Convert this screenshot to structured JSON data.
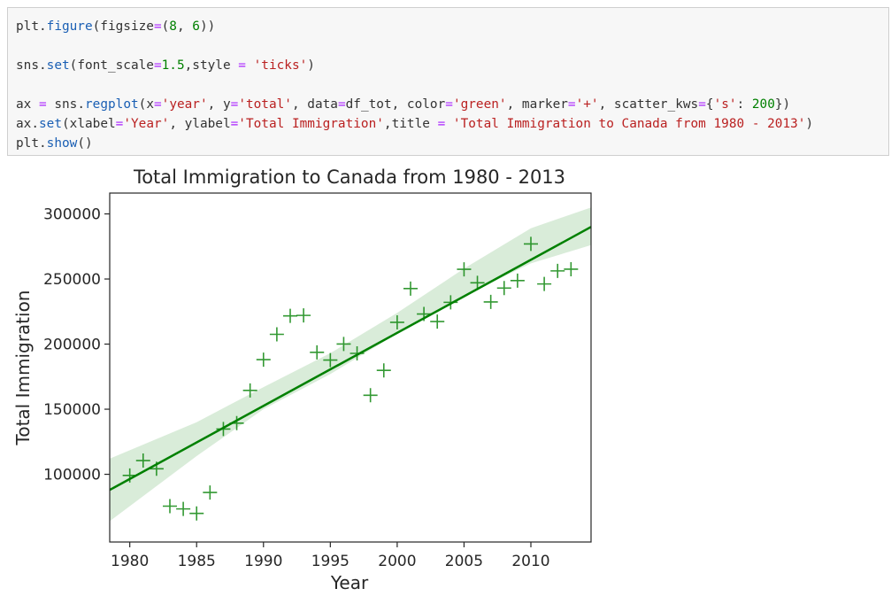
{
  "code_cell": {
    "lines": [
      [
        {
          "t": "plt.",
          "c": ""
        },
        {
          "t": "figure",
          "c": "fn"
        },
        {
          "t": "(figsize",
          "c": ""
        },
        {
          "t": "=",
          "c": "op"
        },
        {
          "t": "(",
          "c": ""
        },
        {
          "t": "8",
          "c": "num"
        },
        {
          "t": ", ",
          "c": ""
        },
        {
          "t": "6",
          "c": "num"
        },
        {
          "t": "))",
          "c": ""
        }
      ],
      [],
      [
        {
          "t": "sns.",
          "c": ""
        },
        {
          "t": "set",
          "c": "fn"
        },
        {
          "t": "(font_scale",
          "c": ""
        },
        {
          "t": "=",
          "c": "op"
        },
        {
          "t": "1.5",
          "c": "num"
        },
        {
          "t": ",style ",
          "c": ""
        },
        {
          "t": "=",
          "c": "op"
        },
        {
          "t": " ",
          "c": ""
        },
        {
          "t": "'ticks'",
          "c": "str"
        },
        {
          "t": ")",
          "c": ""
        }
      ],
      [],
      [
        {
          "t": "ax ",
          "c": ""
        },
        {
          "t": "=",
          "c": "op"
        },
        {
          "t": " sns.",
          "c": ""
        },
        {
          "t": "regplot",
          "c": "fn"
        },
        {
          "t": "(x",
          "c": ""
        },
        {
          "t": "=",
          "c": "op"
        },
        {
          "t": "'year'",
          "c": "str"
        },
        {
          "t": ", y",
          "c": ""
        },
        {
          "t": "=",
          "c": "op"
        },
        {
          "t": "'total'",
          "c": "str"
        },
        {
          "t": ", data",
          "c": ""
        },
        {
          "t": "=",
          "c": "op"
        },
        {
          "t": "df_tot, color",
          "c": ""
        },
        {
          "t": "=",
          "c": "op"
        },
        {
          "t": "'green'",
          "c": "str"
        },
        {
          "t": ", marker",
          "c": ""
        },
        {
          "t": "=",
          "c": "op"
        },
        {
          "t": "'+'",
          "c": "str"
        },
        {
          "t": ", scatter_kws",
          "c": ""
        },
        {
          "t": "=",
          "c": "op"
        },
        {
          "t": "{",
          "c": ""
        },
        {
          "t": "'s'",
          "c": "str"
        },
        {
          "t": ": ",
          "c": ""
        },
        {
          "t": "200",
          "c": "num"
        },
        {
          "t": "})",
          "c": ""
        }
      ],
      [
        {
          "t": "ax.",
          "c": ""
        },
        {
          "t": "set",
          "c": "fn"
        },
        {
          "t": "(xlabel",
          "c": ""
        },
        {
          "t": "=",
          "c": "op"
        },
        {
          "t": "'Year'",
          "c": "str"
        },
        {
          "t": ", ylabel",
          "c": ""
        },
        {
          "t": "=",
          "c": "op"
        },
        {
          "t": "'Total Immigration'",
          "c": "str"
        },
        {
          "t": ",title ",
          "c": ""
        },
        {
          "t": "=",
          "c": "op"
        },
        {
          "t": " ",
          "c": ""
        },
        {
          "t": "'Total Immigration to Canada from 1980 - 2013'",
          "c": "str"
        },
        {
          "t": ")",
          "c": ""
        }
      ],
      [
        {
          "t": "plt.",
          "c": ""
        },
        {
          "t": "show",
          "c": "fn"
        },
        {
          "t": "()",
          "c": ""
        }
      ]
    ]
  },
  "chart_data": {
    "type": "scatter",
    "title": "Total Immigration to Canada from 1980 - 2013",
    "xlabel": "Year",
    "ylabel": "Total Immigration",
    "xlim": [
      1978.5,
      2014.5
    ],
    "ylim": [
      48000,
      316000
    ],
    "xticks": [
      1980,
      1985,
      1990,
      1995,
      2000,
      2005,
      2010
    ],
    "yticks": [
      100000,
      150000,
      200000,
      250000,
      300000
    ],
    "marker": "+",
    "color": "#008000",
    "x": [
      1980,
      1981,
      1982,
      1983,
      1984,
      1985,
      1986,
      1987,
      1988,
      1989,
      1990,
      1991,
      1992,
      1993,
      1994,
      1995,
      1996,
      1997,
      1998,
      1999,
      2000,
      2001,
      2002,
      2003,
      2004,
      2005,
      2006,
      2007,
      2008,
      2009,
      2010,
      2011,
      2012,
      2013
    ],
    "y": [
      99137,
      110563,
      104271,
      75550,
      73417,
      69978,
      86048,
      134771,
      139306,
      164432,
      188054,
      207509,
      221687,
      222049,
      193665,
      187712,
      200085,
      192885,
      160727,
      179818,
      216712,
      242658,
      223111,
      217297,
      232083,
      257457,
      247057,
      232405,
      243047,
      248768,
      276956,
      246194,
      256222,
      257537
    ],
    "regression": {
      "x": [
        1978.5,
        2014.5
      ],
      "y": [
        88000,
        290000
      ]
    },
    "ci": {
      "x": [
        1978.5,
        1985,
        1990,
        1995,
        2000,
        2005,
        2010,
        2014.5
      ],
      "lower": [
        64000,
        114000,
        150000,
        177000,
        208000,
        237000,
        262000,
        276000
      ],
      "upper": [
        112000,
        140000,
        167000,
        193000,
        224000,
        258000,
        289000,
        305000
      ]
    }
  }
}
